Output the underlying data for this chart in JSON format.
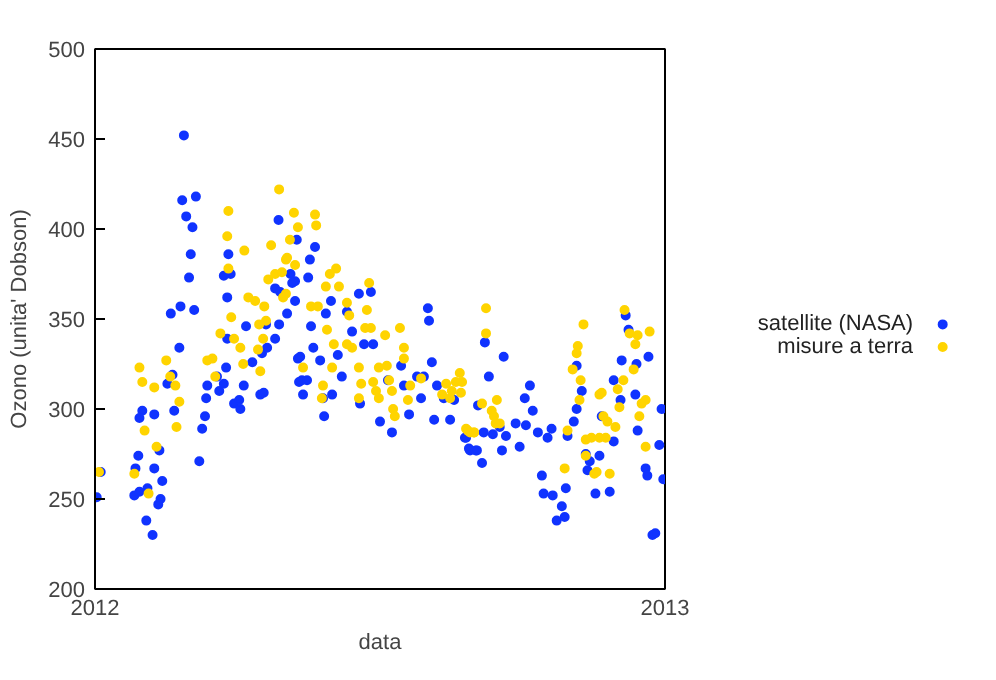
{
  "chart_data": {
    "type": "scatter",
    "xlabel": "data",
    "ylabel": "Ozono (unita' Dobson)",
    "xlim": [
      2012,
      2013
    ],
    "xticks": [
      2012,
      2013
    ],
    "ylim": [
      200,
      500
    ],
    "yticks": [
      200,
      250,
      300,
      350,
      400,
      450,
      500
    ],
    "grid": false,
    "legend": "right",
    "marker": "circle",
    "series": [
      {
        "name": "satellite (NASA)",
        "color": "#1033ff",
        "x": [
          2012.003,
          2012.01,
          2012.156,
          2012.153,
          2012.177,
          2012.16,
          2012.171,
          2012.168,
          2012.165,
          2012.15,
          2012.174,
          2012.133,
          2012.148,
          2012.136,
          2012.127,
          2012.104,
          2012.083,
          2012.078,
          2012.139,
          2012.188,
          2012.193,
          2012.183,
          2012.113,
          2012.104,
          2012.076,
          2012.071,
          2012.069,
          2012.078,
          2012.092,
          2012.118,
          2012.115,
          2012.111,
          2012.09,
          2012.101,
          2012.197,
          2012.195,
          2012.214,
          2012.218,
          2012.23,
          2012.226,
          2012.244,
          2012.253,
          2012.255,
          2012.261,
          2012.29,
          2012.296,
          2012.276,
          2012.293,
          2012.302,
          2012.316,
          2012.3,
          2012.323,
          2012.265,
          2012.232,
          2012.232,
          2012.238,
          2012.234,
          2012.226,
          2012.316,
          2012.325,
          2012.351,
          2012.343,
          2012.351,
          2012.322,
          2012.354,
          2012.356,
          2012.358,
          2012.386,
          2012.377,
          2012.374,
          2012.346,
          2012.337,
          2012.379,
          2012.405,
          2012.414,
          2012.442,
          2012.463,
          2012.484,
          2012.472,
          2012.488,
          2012.451,
          2012.426,
          2012.383,
          2012.36,
          2012.395,
          2012.363,
          2012.372,
          2012.365,
          2012.416,
          2012.433,
          2012.4,
          2012.402,
          2012.465,
          2012.5,
          2012.514,
          2012.537,
          2012.542,
          2012.551,
          2012.521,
          2012.565,
          2012.577,
          2012.572,
          2012.591,
          2012.586,
          2012.584,
          2012.595,
          2012.623,
          2012.612,
          2012.63,
          2012.6,
          2012.651,
          2012.658,
          2012.67,
          2012.684,
          2012.717,
          2012.691,
          2012.672,
          2012.649,
          2012.656,
          2012.668,
          2012.679,
          2012.682,
          2012.698,
          2012.71,
          2012.714,
          2012.721,
          2012.738,
          2012.745,
          2012.756,
          2012.754,
          2012.763,
          2012.768,
          2012.777,
          2012.794,
          2012.801,
          2012.784,
          2012.787,
          2012.803,
          2012.819,
          2012.81,
          2012.824,
          2012.826,
          2012.829,
          2012.84,
          2012.845,
          2012.854,
          2012.845,
          2012.861,
          2012.868,
          2012.864,
          2012.885,
          2012.878,
          2012.889,
          2012.903,
          2012.91,
          2012.91,
          2012.922,
          2012.924,
          2012.931,
          2012.936,
          2012.948,
          2012.95,
          2012.952,
          2012.971,
          2012.966,
          2012.969,
          2012.99,
          2012.994,
          2012.978,
          2012.983,
          2012.997
        ],
        "values": [
          251,
          265,
          452,
          416,
          418,
          407,
          401,
          386,
          373,
          357,
          355,
          353,
          334,
          319,
          314,
          297,
          299,
          295,
          299,
          289,
          296,
          271,
          277,
          267,
          274,
          267,
          252,
          254,
          256,
          260,
          250,
          247,
          238,
          230,
          313,
          306,
          318,
          310,
          323,
          314,
          303,
          305,
          300,
          313,
          308,
          309,
          326,
          331,
          334,
          339,
          347,
          347,
          346,
          339,
          362,
          375,
          386,
          374,
          367,
          365,
          371,
          375,
          360,
          405,
          394,
          328,
          315,
          390,
          383,
          373,
          370,
          353,
          346,
          353,
          360,
          354,
          364,
          365,
          336,
          336,
          343,
          330,
          334,
          329,
          327,
          316,
          316,
          308,
          308,
          318,
          306,
          296,
          303,
          293,
          316,
          324,
          313,
          297,
          287,
          318,
          318,
          306,
          326,
          349,
          356,
          294,
          294,
          306,
          305,
          313,
          284,
          277,
          277,
          337,
          329,
          318,
          302,
          284,
          278,
          277,
          270,
          287,
          286,
          290,
          277,
          285,
          292,
          279,
          291,
          306,
          313,
          299,
          287,
          284,
          289,
          263,
          253,
          252,
          246,
          238,
          240,
          256,
          285,
          293,
          300,
          310,
          324,
          275,
          271,
          266,
          274,
          253,
          296,
          254,
          282,
          316,
          305,
          327,
          352,
          344,
          308,
          325,
          288,
          329,
          267,
          263,
          280,
          300,
          230,
          231,
          261
        ]
      },
      {
        "name": "misure a terra",
        "color": "#ffd400",
        "x": [
          2012.007,
          2012.078,
          2012.083,
          2012.125,
          2012.104,
          2012.132,
          2012.141,
          2012.148,
          2012.143,
          2012.087,
          2012.108,
          2012.069,
          2012.094,
          2012.234,
          2012.232,
          2012.234,
          2012.262,
          2012.269,
          2012.239,
          2012.22,
          2012.197,
          2012.206,
          2012.211,
          2012.244,
          2012.255,
          2012.26,
          2012.286,
          2012.288,
          2012.3,
          2012.295,
          2012.29,
          2012.281,
          2012.297,
          2012.304,
          2012.309,
          2012.323,
          2012.316,
          2012.328,
          2012.335,
          2012.342,
          2012.33,
          2012.356,
          2012.349,
          2012.386,
          2012.388,
          2012.337,
          2012.351,
          2012.335,
          2012.412,
          2012.423,
          2012.405,
          2012.428,
          2012.379,
          2012.391,
          2012.407,
          2012.442,
          2012.446,
          2012.481,
          2012.477,
          2012.474,
          2012.484,
          2012.442,
          2012.451,
          2012.419,
          2012.416,
          2012.365,
          2012.4,
          2012.398,
          2012.509,
          2012.535,
          2012.542,
          2012.512,
          2012.498,
          2012.463,
          2012.467,
          2012.488,
          2012.493,
          2012.498,
          2012.521,
          2012.516,
          2012.542,
          2012.553,
          2012.549,
          2012.523,
          2012.526,
          2012.463,
          2012.572,
          2012.616,
          2012.626,
          2012.633,
          2012.64,
          2012.642,
          2012.609,
          2012.623,
          2012.654,
          2012.665,
          2012.686,
          2012.686,
          2012.644,
          2012.679,
          2012.696,
          2012.705,
          2012.7,
          2012.651,
          2012.658,
          2012.665,
          2012.703,
          2012.71,
          2012.847,
          2012.845,
          2012.857,
          2012.838,
          2012.852,
          2012.85,
          2012.829,
          2012.824,
          2012.861,
          2012.861,
          2012.871,
          2012.885,
          2012.896,
          2012.88,
          2012.876,
          2012.903,
          2012.885,
          2012.889,
          2012.892,
          2012.899,
          2012.913,
          2012.917,
          2012.927,
          2012.92,
          2012.929,
          2012.938,
          2012.948,
          2012.952,
          2012.945,
          2012.959,
          2012.955,
          2012.973,
          2012.966,
          2012.966
        ],
        "values": [
          265,
          323,
          315,
          327,
          312,
          318,
          313,
          304,
          290,
          288,
          279,
          264,
          253,
          410,
          396,
          378,
          388,
          362,
          351,
          342,
          327,
          328,
          318,
          339,
          334,
          325,
          333,
          347,
          349,
          339,
          321,
          360,
          357,
          372,
          391,
          422,
          375,
          376,
          383,
          394,
          362,
          401,
          409,
          408,
          402,
          384,
          380,
          364,
          375,
          378,
          368,
          368,
          357,
          357,
          344,
          359,
          352,
          370,
          355,
          345,
          345,
          336,
          334,
          336,
          323,
          323,
          313,
          306,
          341,
          345,
          334,
          324,
          323,
          323,
          314,
          315,
          310,
          306,
          310,
          316,
          328,
          313,
          305,
          300,
          296,
          306,
          317,
          314,
          310,
          315,
          320,
          309,
          308,
          306,
          288,
          287,
          356,
          342,
          315,
          303,
          299,
          305,
          296,
          289,
          287,
          287,
          292,
          292,
          335,
          331,
          347,
          322,
          316,
          305,
          288,
          267,
          283,
          274,
          284,
          284,
          284,
          265,
          264,
          264,
          308,
          309,
          296,
          293,
          290,
          311,
          316,
          301,
          355,
          342,
          336,
          341,
          322,
          303,
          296,
          343,
          305,
          279
        ]
      }
    ]
  }
}
